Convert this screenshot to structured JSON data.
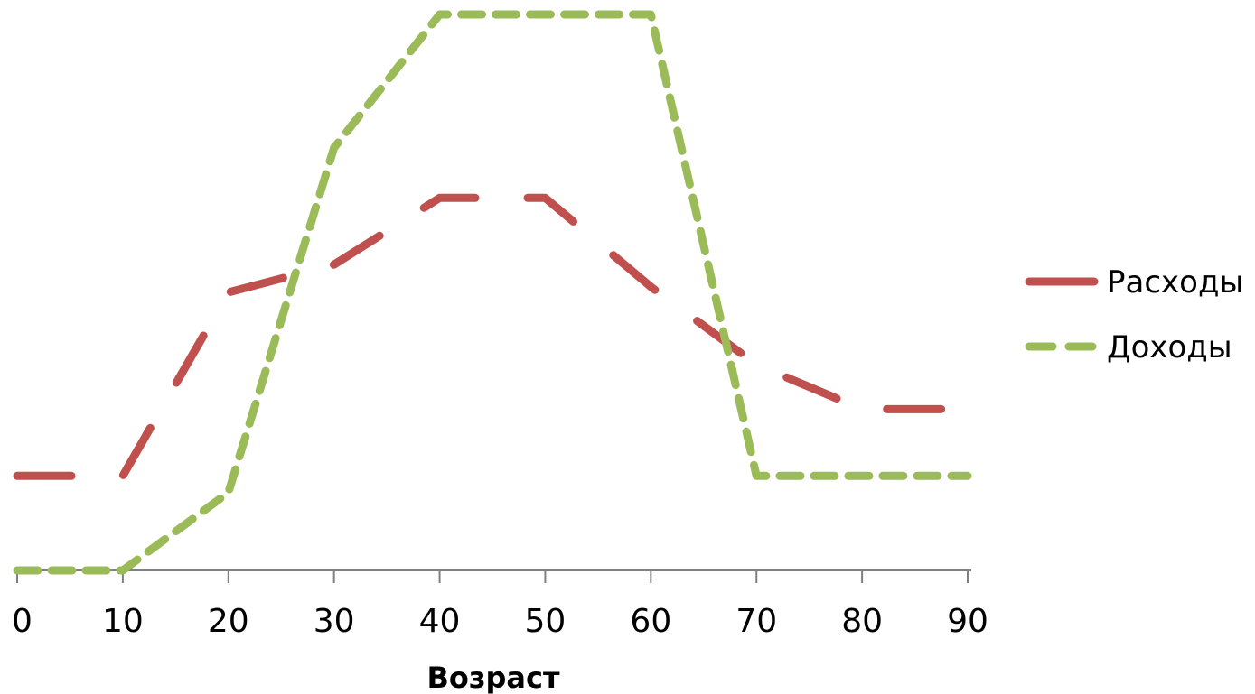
{
  "chart_data": {
    "type": "line",
    "title": "",
    "xlabel": "Возраст",
    "ylabel": "",
    "x": [
      0,
      10,
      20,
      30,
      40,
      50,
      60,
      70,
      80,
      90
    ],
    "xlim": [
      0,
      90
    ],
    "ylim": [
      0,
      100
    ],
    "x_ticks": [
      "0",
      "10",
      "20",
      "30",
      "40",
      "50",
      "60",
      "70",
      "80",
      "90"
    ],
    "y_axis_visible": false,
    "grid": false,
    "legend_position": "right",
    "series": [
      {
        "name": "Расходы",
        "color": "#c0504d",
        "dash": "long-dash",
        "points": [
          [
            0,
            17
          ],
          [
            10,
            17
          ],
          [
            20,
            50
          ],
          [
            30,
            55
          ],
          [
            40,
            67
          ],
          [
            50,
            67
          ],
          [
            60,
            51
          ],
          [
            70,
            37
          ],
          [
            80,
            29
          ],
          [
            90,
            29
          ]
        ]
      },
      {
        "name": "Доходы",
        "color": "#9bbb59",
        "dash": "short-dash",
        "points": [
          [
            0,
            0
          ],
          [
            10,
            0
          ],
          [
            20,
            14
          ],
          [
            30,
            76
          ],
          [
            40,
            100
          ],
          [
            50,
            100
          ],
          [
            60,
            100
          ],
          [
            70,
            17
          ],
          [
            80,
            17
          ],
          [
            90,
            17
          ]
        ]
      }
    ]
  }
}
